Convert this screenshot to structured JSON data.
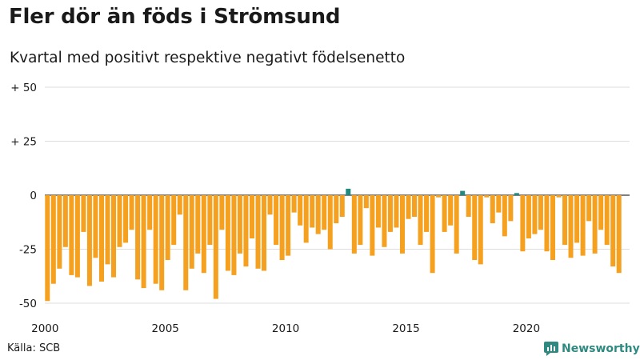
{
  "title": "Fler dör än föds i Strömsund",
  "subtitle": "Kvartal med positivt respektive negativt födelsenetto",
  "source": "Källa: SCB",
  "brand": "Newsworthy",
  "colors": {
    "negative": "#f5a11f",
    "positive": "#208a80",
    "grid": "#dddddd",
    "zero": "#333333"
  },
  "chart_data": {
    "type": "bar",
    "ylim": [
      -50,
      50
    ],
    "y_ticks": [
      {
        "value": 50,
        "label": "+ 50"
      },
      {
        "value": 25,
        "label": "+ 25"
      },
      {
        "value": 0,
        "label": "0"
      },
      {
        "value": -25,
        "label": "-25"
      },
      {
        "value": -50,
        "label": "-50"
      }
    ],
    "x_ticks": [
      "2000",
      "2005",
      "2010",
      "2015",
      "2020"
    ],
    "start_year": 2000,
    "values": [
      -49,
      -41,
      -34,
      -24,
      -37,
      -38,
      -17,
      -42,
      -29,
      -40,
      -32,
      -38,
      -24,
      -22,
      -16,
      -39,
      -43,
      -16,
      -41,
      -44,
      -30,
      -23,
      -9,
      -44,
      -34,
      -27,
      -36,
      -23,
      -48,
      -16,
      -35,
      -37,
      -27,
      -33,
      -20,
      -34,
      -35,
      -9,
      -23,
      -30,
      -28,
      -8,
      -14,
      -22,
      -15,
      -18,
      -16,
      -25,
      -13,
      -10,
      3,
      -27,
      -23,
      -6,
      -28,
      -15,
      -24,
      -17,
      -15,
      -27,
      -11,
      -10,
      -23,
      -17,
      -36,
      -1,
      -17,
      -14,
      -27,
      2,
      -10,
      -30,
      -32,
      -1,
      -13,
      -8,
      -19,
      -12,
      1,
      -26,
      -20,
      -18,
      -16,
      -26,
      -30,
      -1,
      -23,
      -29,
      -22,
      -28,
      -12,
      -27,
      -16,
      -23,
      -33,
      -36
    ]
  }
}
